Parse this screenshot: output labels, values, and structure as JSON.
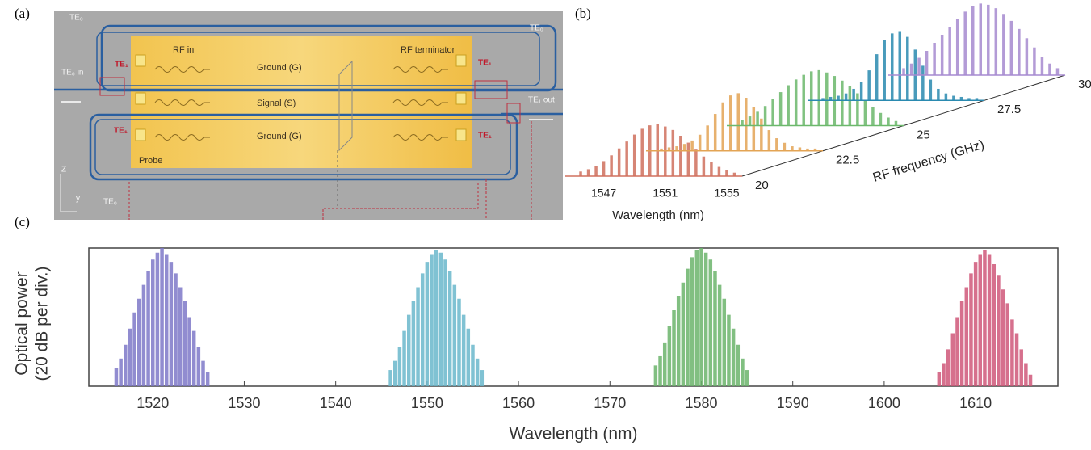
{
  "panel_labels": [
    "(a)",
    "(b)",
    "(c)"
  ],
  "diagram": {
    "labels": [
      "TE₀",
      "TE₀ in",
      "TE₁",
      "RF in",
      "Ground (G)",
      "Signal (S)",
      "Ground (G)",
      "RF terminator",
      "TE₁",
      "TE₀",
      "TE₁ out",
      "TE₁",
      "TE₁",
      "Probe",
      "TE₀",
      "Z",
      "y"
    ]
  },
  "chart_data": [
    {
      "type": "waterfall",
      "xlabel": "Wavelength (nm)",
      "zlabel": "RF frequency (GHz)",
      "xlim": [
        1544.5,
        1556
      ],
      "xticks": [
        1547,
        1551,
        1555
      ],
      "zlim": [
        20,
        30
      ],
      "zticks": [
        20,
        22.5,
        25,
        27.5,
        30
      ],
      "ylim": [
        0,
        70
      ],
      "x": [
        1545.5,
        1546,
        1546.5,
        1547,
        1547.5,
        1548,
        1548.5,
        1549,
        1549.5,
        1550,
        1550.5,
        1551,
        1551.5,
        1552,
        1552.5,
        1553,
        1553.5,
        1554,
        1554.5,
        1555,
        1555.5
      ],
      "series": [
        {
          "z": 20,
          "color": "#d0705e",
          "values": [
            4,
            6,
            9,
            13,
            18,
            24,
            30,
            36,
            41,
            44,
            45,
            43,
            40,
            35,
            29,
            23,
            17,
            12,
            8,
            5,
            3
          ]
        },
        {
          "z": 22.5,
          "color": "#e3a455",
          "values": [
            2,
            3,
            4,
            6,
            9,
            14,
            22,
            32,
            42,
            48,
            50,
            46,
            38,
            28,
            18,
            11,
            7,
            4,
            3,
            2,
            2
          ]
        },
        {
          "z": 25,
          "color": "#6cb86c",
          "values": [
            5,
            8,
            12,
            17,
            23,
            29,
            35,
            40,
            44,
            47,
            48,
            46,
            43,
            39,
            34,
            28,
            22,
            16,
            11,
            7,
            4
          ]
        },
        {
          "z": 27.5,
          "color": "#2a8ab0",
          "values": [
            2,
            3,
            4,
            6,
            10,
            16,
            26,
            40,
            52,
            58,
            60,
            55,
            44,
            30,
            18,
            10,
            6,
            4,
            3,
            2,
            2
          ]
        },
        {
          "z": 30,
          "color": "#a68ad0",
          "values": [
            6,
            10,
            15,
            21,
            28,
            35,
            42,
            49,
            55,
            60,
            62,
            61,
            58,
            53,
            47,
            40,
            32,
            24,
            16,
            10,
            6
          ]
        }
      ]
    },
    {
      "type": "comb",
      "xlabel": "Wavelength (nm)",
      "ylabel": [
        "Optical power",
        "(20 dB per div.)"
      ],
      "xlim": [
        1513,
        1619
      ],
      "xticks": [
        1520,
        1530,
        1540,
        1550,
        1560,
        1570,
        1580,
        1590,
        1600,
        1610
      ],
      "ylim": [
        0,
        60
      ],
      "series": [
        {
          "color": "#7e78c8",
          "x": [
            1516,
            1516.5,
            1517,
            1517.5,
            1518,
            1518.5,
            1519,
            1519.5,
            1520,
            1520.5,
            1521,
            1521.5,
            1522,
            1522.5,
            1523,
            1523.5,
            1524,
            1524.5,
            1525,
            1525.5,
            1526
          ],
          "values": [
            8,
            12,
            18,
            25,
            32,
            38,
            44,
            50,
            55,
            58,
            60,
            57,
            54,
            49,
            43,
            37,
            30,
            24,
            17,
            11,
            6
          ]
        },
        {
          "color": "#6bb8cc",
          "x": [
            1546,
            1546.5,
            1547,
            1547.5,
            1548,
            1548.5,
            1549,
            1549.5,
            1550,
            1550.5,
            1551,
            1551.5,
            1552,
            1552.5,
            1553,
            1553.5,
            1554,
            1554.5,
            1555,
            1555.5,
            1556
          ],
          "values": [
            7,
            11,
            17,
            24,
            31,
            37,
            43,
            49,
            54,
            57,
            59,
            58,
            55,
            50,
            44,
            38,
            31,
            25,
            18,
            12,
            7
          ]
        },
        {
          "color": "#6cb56c",
          "x": [
            1575,
            1575.5,
            1576,
            1576.5,
            1577,
            1577.5,
            1578,
            1578.5,
            1579,
            1579.5,
            1580,
            1580.5,
            1581,
            1581.5,
            1582,
            1582.5,
            1583,
            1583.5,
            1584,
            1584.5,
            1585
          ],
          "values": [
            9,
            13,
            19,
            26,
            33,
            39,
            45,
            51,
            56,
            59,
            60,
            58,
            55,
            50,
            44,
            38,
            31,
            25,
            18,
            12,
            7
          ]
        },
        {
          "color": "#d0587a",
          "x": [
            1606,
            1606.5,
            1607,
            1607.5,
            1608,
            1608.5,
            1609,
            1609.5,
            1610,
            1610.5,
            1611,
            1611.5,
            1612,
            1612.5,
            1613,
            1613.5,
            1614,
            1614.5,
            1615,
            1615.5,
            1616
          ],
          "values": [
            6,
            10,
            16,
            23,
            30,
            37,
            43,
            49,
            54,
            57,
            59,
            57,
            53,
            48,
            42,
            36,
            29,
            23,
            16,
            10,
            5
          ]
        }
      ]
    }
  ]
}
